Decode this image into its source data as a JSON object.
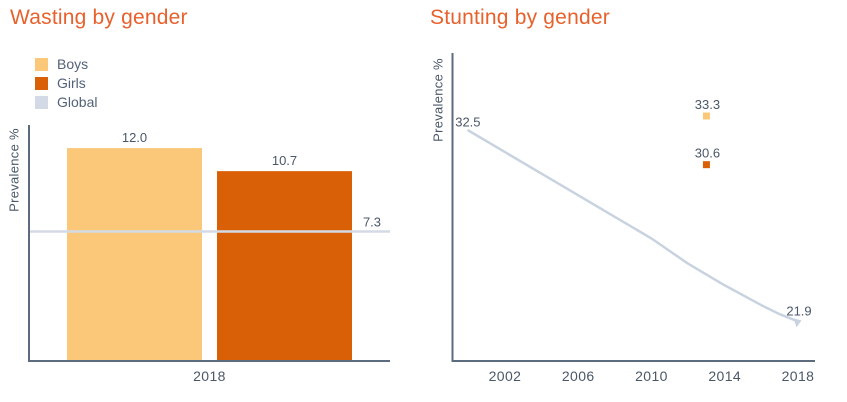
{
  "colors": {
    "accent_title": "#E8612C",
    "boys": "#FAC878",
    "girls": "#D96007",
    "global": "#C9D3E0",
    "axis": "#5C6B7E",
    "text": "#4A5768"
  },
  "chart_data": [
    {
      "type": "bar",
      "title": "Wasting by gender",
      "xlabel": "",
      "ylabel": "Prevalence %",
      "categories": [
        "2018"
      ],
      "series": [
        {
          "name": "Boys",
          "values": [
            12.0
          ],
          "value_labels": [
            "12.0"
          ],
          "color": "#FAC878"
        },
        {
          "name": "Girls",
          "values": [
            10.7
          ],
          "value_labels": [
            "10.7"
          ],
          "color": "#D96007"
        }
      ],
      "reference_line": {
        "name": "Global",
        "value": 7.3,
        "label": "7.3",
        "color": "#D3DAE6"
      },
      "ylim": [
        0,
        13.3
      ],
      "grid": false,
      "legend_position": "top-left"
    },
    {
      "type": "line",
      "title": "Stunting by gender",
      "xlabel": "",
      "ylabel": "Prevalence %",
      "x_ticks": [
        2002,
        2006,
        2010,
        2014,
        2018
      ],
      "xlim": [
        2000,
        2018.9
      ],
      "ylim": [
        19.7,
        36.8
      ],
      "grid": false,
      "series": [
        {
          "name": "Global",
          "color": "#C9D3E0",
          "points": [
            [
              2000,
              32.5
            ],
            [
              2002,
              31.3
            ],
            [
              2004,
              30.1
            ],
            [
              2006,
              28.9
            ],
            [
              2008,
              27.7
            ],
            [
              2010,
              26.5
            ],
            [
              2012,
              25.1
            ],
            [
              2014,
              23.9
            ],
            [
              2016,
              22.8
            ],
            [
              2017,
              22.3
            ],
            [
              2018,
              21.9
            ]
          ],
          "start_label": "32.5",
          "end_label": "21.9"
        },
        {
          "name": "Boys",
          "color": "#FAC878",
          "marker": "square",
          "points": [
            [
              2013,
              33.3
            ]
          ],
          "label": "33.3"
        },
        {
          "name": "Girls",
          "color": "#D96007",
          "marker": "square",
          "points": [
            [
              2013,
              30.6
            ]
          ],
          "label": "30.6"
        }
      ]
    }
  ]
}
